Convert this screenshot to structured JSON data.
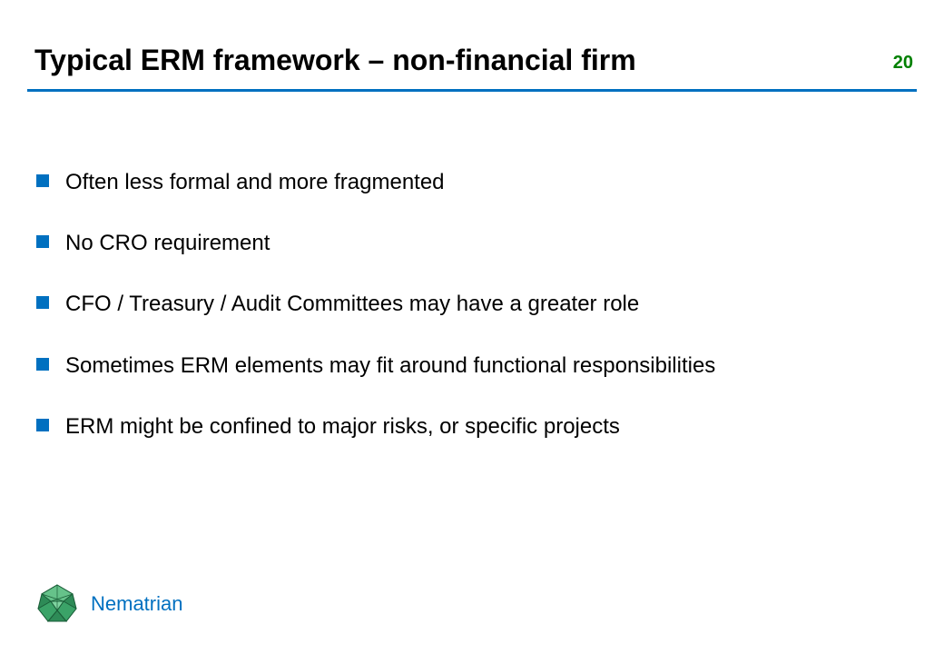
{
  "header": {
    "title": "Typical ERM framework – non-financial firm",
    "title_color": "#000000",
    "title_fontsize": 32
  },
  "page_number": {
    "value": "20",
    "color": "#008000",
    "fontsize": 20
  },
  "divider": {
    "color": "#0070c0",
    "thickness": 3
  },
  "bullets": {
    "marker_color": "#0070c0",
    "marker_size": 14,
    "text_color": "#000000",
    "text_fontsize": 24,
    "items": [
      {
        "text": "Often less formal and more fragmented"
      },
      {
        "text": "No CRO requirement"
      },
      {
        "text": "CFO / Treasury / Audit Committees may have a greater role"
      },
      {
        "text": "Sometimes ERM elements may fit around functional responsibilities"
      },
      {
        "text": "ERM might be confined to major risks, or specific projects"
      }
    ]
  },
  "footer": {
    "brand_name": "Nematrian",
    "brand_color": "#0070c0",
    "brand_fontsize": 22,
    "logo_colors": {
      "primary": "#2e8b57",
      "light": "#66c28a",
      "dark": "#1a5d38"
    }
  },
  "background_color": "#ffffff"
}
